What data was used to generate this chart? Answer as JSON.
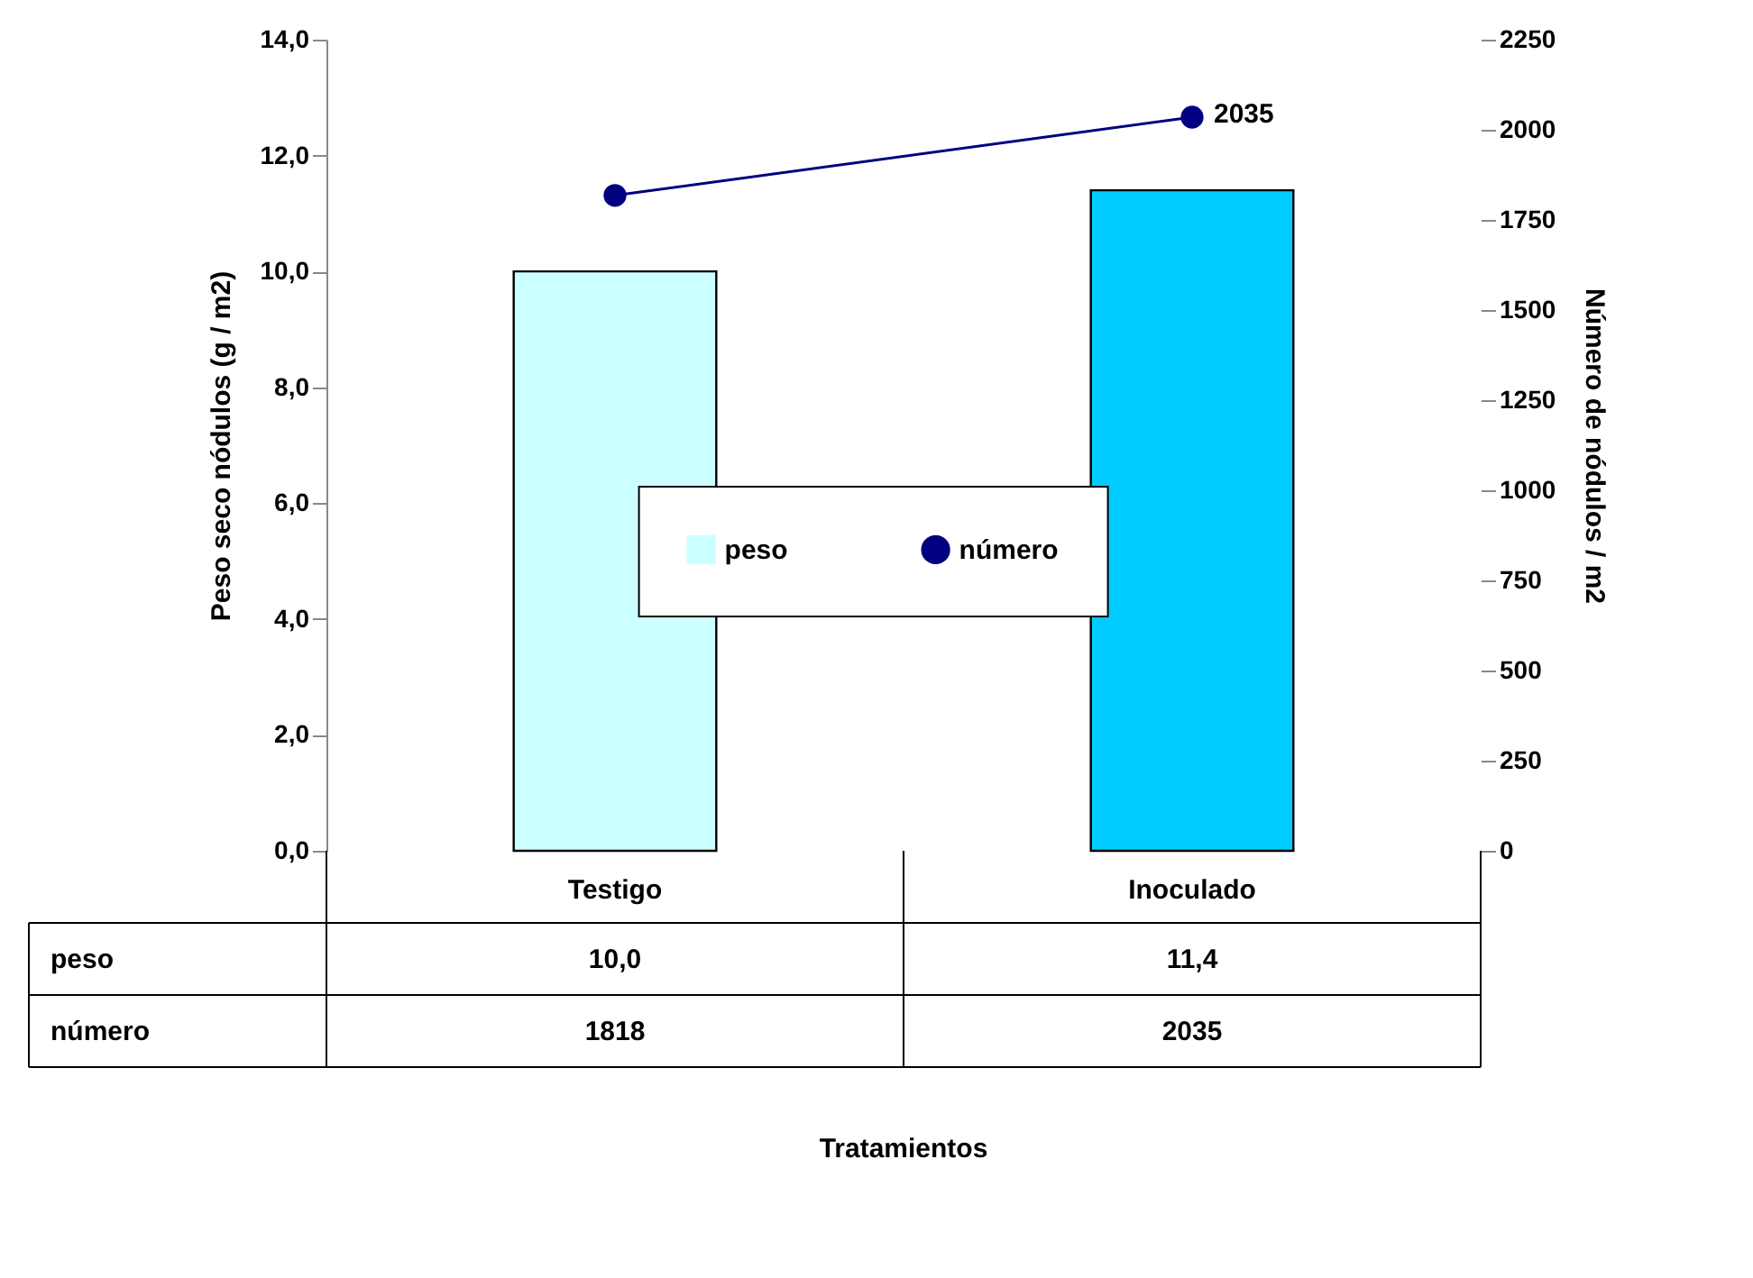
{
  "chart_data": {
    "type": "bar",
    "categories": [
      "Testigo",
      "Inoculado"
    ],
    "ylabel": "Peso seco nódulos (g / m2)",
    "y2label": "Número de nódulos / m2",
    "series": [
      {
        "name": "peso",
        "colors": [
          "#ccffff",
          "#00ccff"
        ],
        "values": [
          10.0,
          11.4
        ],
        "value_labels": [
          "10,0",
          "11,4"
        ]
      },
      {
        "name": "número",
        "type": "line",
        "axis": "y2",
        "color": "#000080",
        "marker": "circle",
        "values": [
          1818,
          2035
        ],
        "value_labels": [
          "1818",
          "2035"
        ]
      }
    ],
    "ylim": [
      0,
      14
    ],
    "yticks": [
      {
        "value": 0,
        "label": "0,0"
      },
      {
        "value": 2,
        "label": "2,0"
      },
      {
        "value": 4,
        "label": "4,0"
      },
      {
        "value": 6,
        "label": "6,0"
      },
      {
        "value": 8,
        "label": "8,0"
      },
      {
        "value": 10,
        "label": "10,0"
      },
      {
        "value": 12,
        "label": "12,0"
      },
      {
        "value": 14,
        "label": "14,0"
      }
    ],
    "y2lim": [
      0,
      2250
    ],
    "y2ticks": [
      0,
      250,
      500,
      750,
      1000,
      1250,
      1500,
      1750,
      2000,
      2250
    ],
    "annotations": [
      "2035",
      "Tratamientos"
    ],
    "legend": "center",
    "data_labels": true
  }
}
